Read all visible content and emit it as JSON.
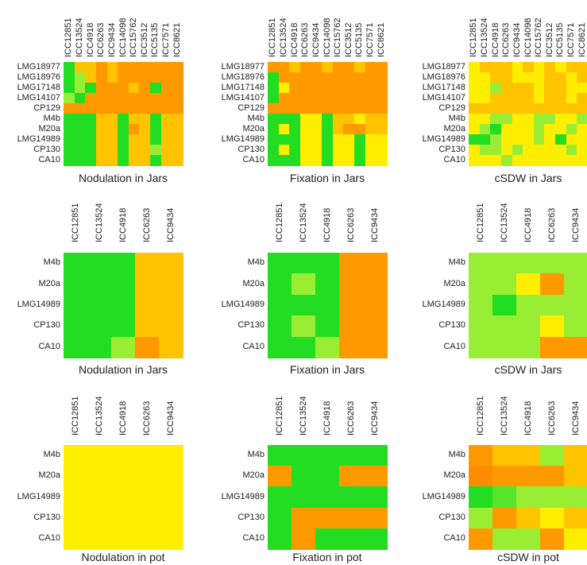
{
  "colors": {
    "G": "#22dd22",
    "L": "#99ee33",
    "Y": "#ffee00",
    "A": "#ffc300",
    "O": "#ff9900",
    "D": "#ff8c00",
    "M": "#55e52a"
  },
  "chart_data": [
    {
      "type": "heatmap",
      "title": "Nodulation in Jars",
      "columns": [
        "ICC12851",
        "ICC13524",
        "ICC4918",
        "ICC6263",
        "ICC9434",
        "ICC14098",
        "ICC15762",
        "ICC3512",
        "ICC5135",
        "ICC7571",
        "ICC8621"
      ],
      "rows": [
        "LMG18977",
        "LMG18976",
        "LMG17148",
        "LMG14107",
        "CP129",
        "M4b",
        "M20a",
        "LMG14989",
        "CP130",
        "CA10"
      ],
      "grid": [
        "GAAOAOOOOOO",
        "GLAOAOOOOOO",
        "GLGOOOAOGOO",
        "LGOOOOOOOOO",
        "OOOOOOOOOOO",
        "GGGAAGAAGAA",
        "GGGAAGOAGAA",
        "GGGAAGAAGAA",
        "GGGAAGAALAA",
        "GGGAAGAAGAA"
      ]
    },
    {
      "type": "heatmap",
      "title": "Fixation in Jars",
      "columns": [
        "ICC12851",
        "ICC13524",
        "ICC4918",
        "ICC6263",
        "ICC9434",
        "ICC14098",
        "ICC15762",
        "ICC3512",
        "ICC5135",
        "ICC7571",
        "ICC8621"
      ],
      "rows": [
        "LMG18977",
        "LMG18976",
        "LMG17148",
        "LMG14107",
        "CP129",
        "M4b",
        "M20a",
        "LMG14989",
        "CP130",
        "CA10"
      ],
      "grid": [
        "OOAOOAOOAOO",
        "GOOOOOOOOOO",
        "GYOOOOOOOOO",
        "GOOOOOOOOOO",
        "OOOOOOOOOOO",
        "GGGYYGAAYAA",
        "GYGYYGAOOAA",
        "GGGYYGYYGYY",
        "GYGYYGYYGYY",
        "GGGYYGYYGYY"
      ]
    },
    {
      "type": "heatmap",
      "title": "cSDW in Jars",
      "columns": [
        "ICC12851",
        "ICC13524",
        "ICC4918",
        "ICC6263",
        "ICC9434",
        "ICC14098",
        "ICC15762",
        "ICC3512",
        "ICC5135",
        "ICC7571",
        "ICC8621"
      ],
      "rows": [
        "LMG18977",
        "LMG18976",
        "LMG17148",
        "LMG14107",
        "CP129",
        "M4b",
        "M20a",
        "LMG14989",
        "CP130",
        "CA10"
      ],
      "grid": [
        "YAAAYAYAYAA",
        "YYAAYYYAAYA",
        "YYLAAAYAAYY",
        "YYAAAAYAAYA",
        "AAAAAAAAAAA",
        "YYLLYYLLYYL",
        "YLGYYYLYYLY",
        "GGLYYYLYGYY",
        "YLLYLYYYYLY",
        "YYYLYYYYYYY"
      ]
    },
    {
      "type": "heatmap",
      "title": "Nodulation in Jars",
      "columns": [
        "ICC12851",
        "ICC13524",
        "ICC4918",
        "ICC6263",
        "ICC9434"
      ],
      "rows": [
        "M4b",
        "M20a",
        "LMG14989",
        "CP130",
        "CA10"
      ],
      "grid": [
        "GGGAA",
        "GGGAA",
        "GGGAA",
        "GGGAA",
        "GGLOA"
      ]
    },
    {
      "type": "heatmap",
      "title": "Fixation in Jars",
      "columns": [
        "ICC12851",
        "ICC13524",
        "ICC4918",
        "ICC6263",
        "ICC9434"
      ],
      "rows": [
        "M4b",
        "M20a",
        "LMG14989",
        "CP130",
        "CA10"
      ],
      "grid": [
        "GGGOO",
        "GLGOO",
        "GGGOO",
        "GLGOO",
        "GGLOO"
      ]
    },
    {
      "type": "heatmap",
      "title": "cSDW in Jars",
      "columns": [
        "ICC12851",
        "ICC13524",
        "ICC4918",
        "ICC6263",
        "ICC9434"
      ],
      "rows": [
        "M4b",
        "M20a",
        "LMG14989",
        "CP130",
        "CA10"
      ],
      "grid": [
        "LLLLL",
        "LLYOL",
        "LGLLL",
        "LLLYL",
        "LLLOO"
      ]
    },
    {
      "type": "heatmap",
      "title": "Nodulation in pot",
      "columns": [
        "ICC12851",
        "ICC13524",
        "ICC4918",
        "ICC6263",
        "ICC9434"
      ],
      "rows": [
        "M4b",
        "M20a",
        "LMG14989",
        "CP130",
        "CA10"
      ],
      "grid": [
        "YYYYY",
        "YYYYY",
        "YYYYY",
        "YYYYY",
        "YYYYY"
      ]
    },
    {
      "type": "heatmap",
      "title": "Fixation in pot",
      "columns": [
        "ICC12851",
        "ICC13524",
        "ICC4918",
        "ICC6263",
        "ICC9434"
      ],
      "rows": [
        "M4b",
        "M20a",
        "LMG14989",
        "CP130",
        "CA10"
      ],
      "grid": [
        "GGGGG",
        "OGGOO",
        "GGGGG",
        "GOOOO",
        "GOGGG"
      ]
    },
    {
      "type": "heatmap",
      "title": "cSDW in pot",
      "columns": [
        "ICC12851",
        "ICC13524",
        "ICC4918",
        "ICC6263",
        "ICC9434"
      ],
      "rows": [
        "M4b",
        "M20a",
        "LMG14989",
        "CP130",
        "CA10"
      ],
      "grid": [
        "OAALA",
        "DOOOA",
        "GMLLL",
        "LOAYA",
        "OLLOY"
      ]
    }
  ]
}
